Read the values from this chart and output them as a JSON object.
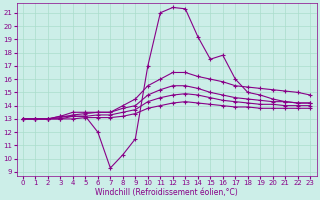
{
  "xlabel": "Windchill (Refroidissement éolien,°C)",
  "bg_color": "#cceee8",
  "grid_color": "#aaddcc",
  "line_color": "#880088",
  "xlim": [
    -0.5,
    23.5
  ],
  "ylim": [
    8.7,
    21.7
  ],
  "yticks": [
    9,
    10,
    11,
    12,
    13,
    14,
    15,
    16,
    17,
    18,
    19,
    20,
    21
  ],
  "xticks": [
    0,
    1,
    2,
    3,
    4,
    5,
    6,
    7,
    8,
    9,
    10,
    11,
    12,
    13,
    14,
    15,
    16,
    17,
    18,
    19,
    20,
    21,
    22,
    23
  ],
  "lines": [
    [
      13,
      13,
      13,
      13.2,
      13.2,
      13.2,
      12,
      9.3,
      10.3,
      11.5,
      17.0,
      21.0,
      21.4,
      21.3,
      19.2,
      17.5,
      17.8,
      16.0,
      15.0,
      14.8,
      14.5,
      14.3,
      14.2,
      14.2
    ],
    [
      13,
      13,
      13,
      13.2,
      13.5,
      13.5,
      13.5,
      13.5,
      14.0,
      14.5,
      15.5,
      16.0,
      16.5,
      16.5,
      16.2,
      16.0,
      15.8,
      15.5,
      15.4,
      15.3,
      15.2,
      15.1,
      15.0,
      14.8
    ],
    [
      13,
      13,
      13,
      13.1,
      13.3,
      13.4,
      13.5,
      13.5,
      13.8,
      14.0,
      14.8,
      15.2,
      15.5,
      15.5,
      15.3,
      15.0,
      14.8,
      14.6,
      14.5,
      14.4,
      14.3,
      14.3,
      14.2,
      14.2
    ],
    [
      13,
      13,
      13,
      13.0,
      13.2,
      13.2,
      13.3,
      13.3,
      13.5,
      13.7,
      14.3,
      14.6,
      14.8,
      14.9,
      14.8,
      14.6,
      14.4,
      14.3,
      14.2,
      14.1,
      14.1,
      14.0,
      14.0,
      14.0
    ],
    [
      13,
      13,
      13,
      13.0,
      13.0,
      13.1,
      13.1,
      13.1,
      13.2,
      13.4,
      13.8,
      14.0,
      14.2,
      14.3,
      14.2,
      14.1,
      14.0,
      13.9,
      13.9,
      13.8,
      13.8,
      13.8,
      13.8,
      13.8
    ]
  ]
}
